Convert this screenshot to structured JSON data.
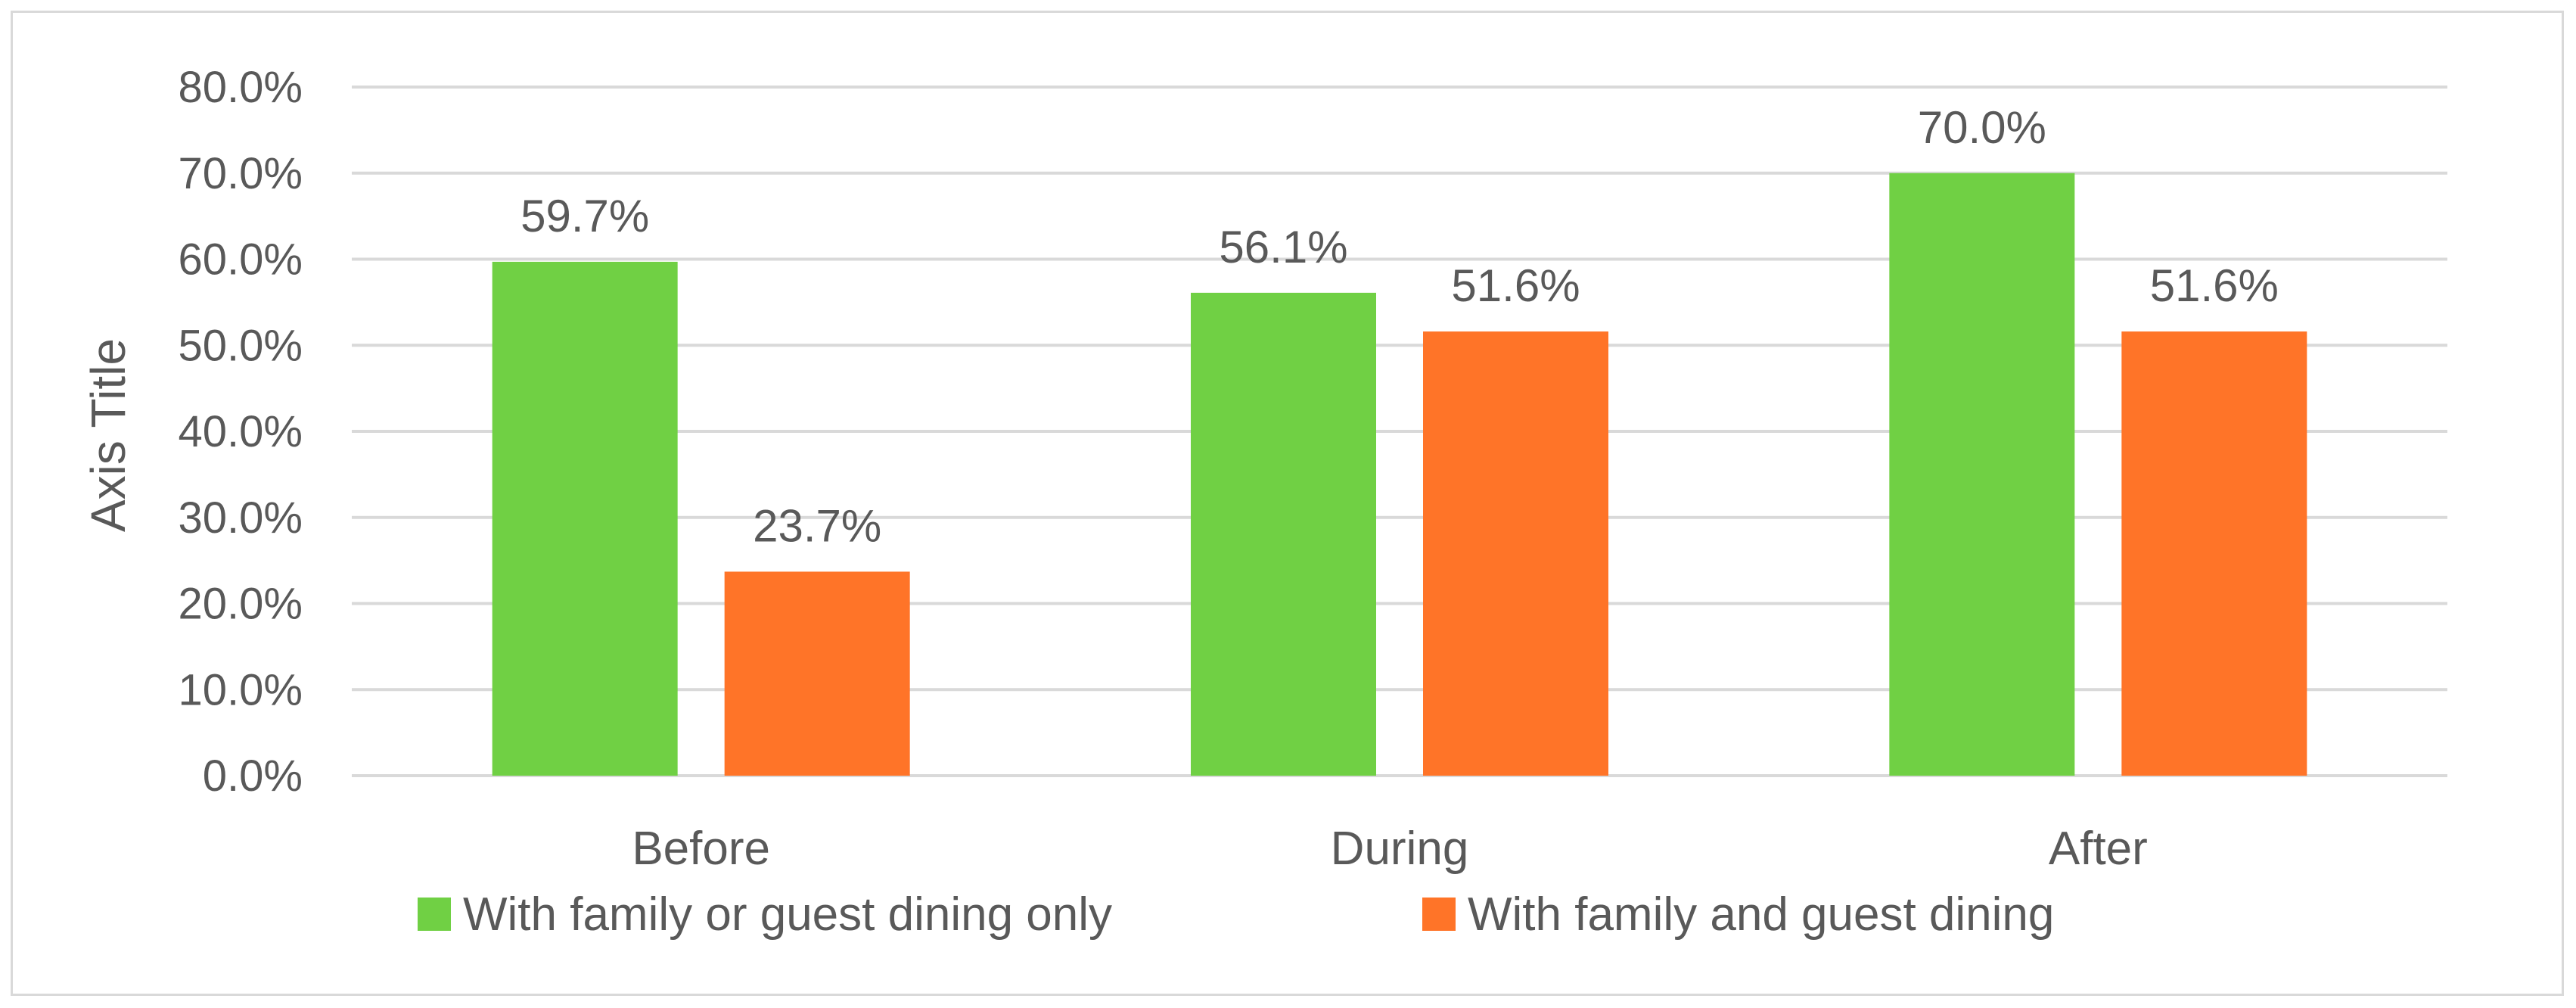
{
  "chart_data": {
    "type": "bar",
    "categories": [
      "Before",
      "During",
      "After"
    ],
    "series": [
      {
        "name": "With family or guest dining only",
        "values": [
          59.7,
          56.1,
          70.0
        ],
        "labels": [
          "59.7%",
          "56.1%",
          "70.0%"
        ],
        "color": "#70d044"
      },
      {
        "name": "With family and guest dining",
        "values": [
          23.7,
          51.6,
          51.6
        ],
        "labels": [
          "23.7%",
          "51.6%",
          "51.6%"
        ],
        "color": "#ff7428"
      }
    ],
    "ylabel": "Axis Title",
    "ylim": [
      0,
      80
    ],
    "yticks": [
      "0.0%",
      "10.0%",
      "20.0%",
      "30.0%",
      "40.0%",
      "50.0%",
      "60.0%",
      "70.0%",
      "80.0%"
    ],
    "grid": true,
    "legend_position": "bottom",
    "colors": {
      "gridline": "#d9d9d9",
      "text": "#595959",
      "border": "#d9d9d9"
    }
  }
}
